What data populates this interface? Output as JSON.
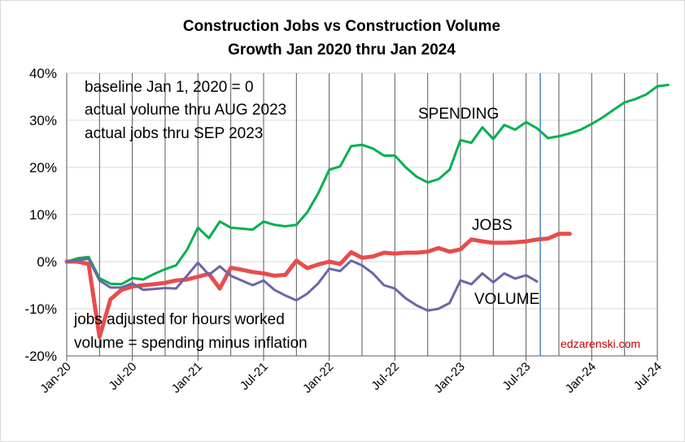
{
  "chart_data": {
    "type": "line",
    "title": "Construction Jobs vs Construction Volume",
    "subtitle": "Growth Jan 2020 thru Jan 2024",
    "x_start": "Jan-20",
    "ylim": [
      -20,
      40
    ],
    "yticks": [
      -20,
      -10,
      0,
      10,
      20,
      30,
      40
    ],
    "ytick_labels": [
      "-20%",
      "-10%",
      "0%",
      "10%",
      "20%",
      "30%",
      "40%"
    ],
    "x_tick_labels": [
      "Jan-20",
      "Jul-20",
      "Jan-21",
      "Jul-21",
      "Jan-22",
      "Jul-22",
      "Jan-23",
      "Jul-23",
      "Jan-24",
      "Jul-24"
    ],
    "x_tick_months": [
      0,
      6,
      12,
      18,
      24,
      30,
      36,
      42,
      48,
      54
    ],
    "actual_data_marker_month": 43.3,
    "notes_top": [
      "baseline Jan 1, 2020 = 0",
      "actual volume thru AUG 2023",
      "actual jobs thru SEP 2023"
    ],
    "notes_bottom": [
      "jobs adjusted for hours worked",
      "volume = spending minus inflation"
    ],
    "credit": "edzarenski.com",
    "series": [
      {
        "name": "SPENDING",
        "color": "#00b050",
        "start_month": 0,
        "values": [
          0,
          0.7,
          1,
          -3.5,
          -4.7,
          -4.8,
          -3.5,
          -3.8,
          -2.6,
          -1.6,
          -0.8,
          2.5,
          7.2,
          5,
          8.5,
          7.2,
          7,
          6.8,
          8.5,
          7.8,
          7.5,
          7.8,
          10.5,
          14.5,
          19.5,
          20.2,
          24.5,
          24.8,
          24,
          22.5,
          22.5,
          20,
          18,
          16.8,
          17.5,
          19.5,
          25.8,
          25.2,
          28.5,
          26,
          29,
          28,
          29.6,
          28.3,
          26.2,
          26.6,
          27.2,
          28,
          29.2,
          30.6,
          32.2,
          33.8,
          34.5,
          35.5,
          37.2,
          37.5
        ]
      },
      {
        "name": "JOBS",
        "color": "#e84c4c",
        "start_month": 0,
        "values": [
          0,
          0,
          -0.5,
          -16,
          -8,
          -6,
          -5.3,
          -5,
          -4.8,
          -4.5,
          -4,
          -3.8,
          -3.2,
          -2.6,
          -5.7,
          -1.3,
          -1.7,
          -2.2,
          -2.5,
          -3,
          -2.8,
          0.2,
          -1.4,
          -0.6,
          0,
          -0.5,
          2,
          0.8,
          1.1,
          1.9,
          1.7,
          1.9,
          1.9,
          2.1,
          2.9,
          2.1,
          2.6,
          4.7,
          4.3,
          4.0,
          4.0,
          4.1,
          4.3,
          4.7,
          4.9,
          5.9,
          5.9
        ]
      },
      {
        "name": "VOLUME",
        "color": "#6a67a6",
        "start_month": 0,
        "values": [
          0,
          0.3,
          0.6,
          -4,
          -5.5,
          -5.5,
          -4.6,
          -6,
          -5.8,
          -5.6,
          -5.7,
          -3,
          -0.2,
          -2.8,
          -1,
          -3,
          -4,
          -5,
          -4,
          -6,
          -7.2,
          -8.2,
          -6.8,
          -4.6,
          -1.5,
          -2,
          0.2,
          -0.8,
          -2.5,
          -5,
          -5.7,
          -7.8,
          -9.3,
          -10.4,
          -10,
          -8.8,
          -4,
          -4.8,
          -2.5,
          -4.4,
          -2.5,
          -3.6,
          -2.9,
          -4.2
        ]
      }
    ]
  }
}
